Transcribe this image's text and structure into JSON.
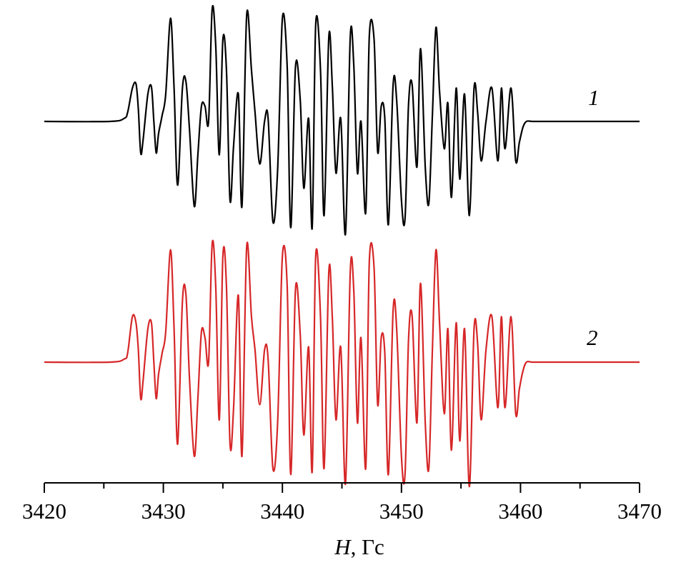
{
  "chart_data": {
    "type": "line",
    "xlabel_italic": "H",
    "xlabel_rest": ", Гс",
    "xlim": [
      3420,
      3470
    ],
    "xticks_major": [
      3420,
      3430,
      3440,
      3450,
      3460,
      3470
    ],
    "xticks_minor": [
      3425,
      3435,
      3445,
      3455,
      3465
    ],
    "series": [
      {
        "name": "1",
        "color": "#000000",
        "x": [
          3420.0,
          3425.5,
          3426.7,
          3427.0,
          3427.4,
          3427.7,
          3427.9,
          3428.1,
          3428.3,
          3428.7,
          3429.0,
          3429.2,
          3429.4,
          3429.6,
          3429.9,
          3430.2,
          3430.6,
          3430.9,
          3431.2,
          3431.6,
          3431.9,
          3432.2,
          3432.6,
          3432.9,
          3433.2,
          3433.5,
          3433.8,
          3434.1,
          3434.4,
          3434.7,
          3435.0,
          3435.3,
          3435.6,
          3435.9,
          3436.3,
          3436.6,
          3437.0,
          3437.4,
          3437.7,
          3438.1,
          3438.5,
          3438.8,
          3439.2,
          3439.6,
          3440.0,
          3440.4,
          3440.7,
          3441.1,
          3441.5,
          3441.8,
          3442.2,
          3442.5,
          3442.8,
          3443.2,
          3443.5,
          3443.9,
          3444.2,
          3444.5,
          3444.9,
          3445.3,
          3445.7,
          3446.0,
          3446.3,
          3446.6,
          3447.0,
          3447.3,
          3447.7,
          3448.0,
          3448.3,
          3448.6,
          3448.9,
          3449.3,
          3449.6,
          3450.0,
          3450.3,
          3450.6,
          3450.9,
          3451.3,
          3451.6,
          3452.0,
          3452.3,
          3452.6,
          3452.9,
          3453.2,
          3453.6,
          3453.9,
          3454.2,
          3454.6,
          3454.9,
          3455.3,
          3455.7,
          3456.1,
          3456.4,
          3456.7,
          3457.1,
          3457.6,
          3458.1,
          3458.4,
          3458.7,
          3459.2,
          3459.6,
          3459.9,
          3460.2,
          3460.5,
          3461.0,
          3462.0,
          3470.0
        ],
        "y": [
          0.0,
          0.0,
          0.05,
          0.15,
          0.55,
          0.62,
          0.2,
          -0.52,
          -0.3,
          0.45,
          0.57,
          0.0,
          -0.52,
          -0.2,
          0.1,
          0.45,
          1.7,
          0.55,
          -1.05,
          0.55,
          0.65,
          -0.15,
          -1.4,
          -0.55,
          0.25,
          0.25,
          0.0,
          1.85,
          1.25,
          -0.55,
          1.35,
          0.85,
          -1.3,
          -0.4,
          0.45,
          -1.4,
          1.75,
          0.85,
          0.15,
          -0.7,
          0.0,
          0.05,
          -1.65,
          -0.8,
          1.7,
          0.9,
          -1.75,
          0.9,
          0.35,
          -1.1,
          0.05,
          -1.75,
          1.6,
          0.85,
          -1.55,
          1.4,
          0.55,
          -0.85,
          0.05,
          -1.85,
          1.4,
          0.9,
          -0.85,
          0.0,
          -1.5,
          1.4,
          1.35,
          -0.5,
          0.25,
          0.05,
          -1.7,
          0.6,
          0.35,
          -1.3,
          -1.6,
          0.3,
          0.6,
          -0.75,
          1.2,
          -0.75,
          -1.35,
          0.1,
          1.55,
          0.5,
          -0.45,
          0.3,
          -1.25,
          0.55,
          -0.95,
          0.45,
          -1.55,
          0.55,
          0.15,
          -0.65,
          0.0,
          0.55,
          -0.65,
          0.55,
          -0.45,
          0.55,
          -0.65,
          -0.35,
          -0.1,
          0.0,
          0.0,
          0.0,
          0.0
        ]
      },
      {
        "name": "2",
        "color": "#d62728",
        "x": [
          3420.0,
          3425.5,
          3426.7,
          3427.0,
          3427.4,
          3427.7,
          3427.9,
          3428.1,
          3428.3,
          3428.7,
          3429.0,
          3429.2,
          3429.4,
          3429.6,
          3429.9,
          3430.2,
          3430.6,
          3430.9,
          3431.2,
          3431.6,
          3431.9,
          3432.2,
          3432.6,
          3432.9,
          3433.2,
          3433.5,
          3433.8,
          3434.1,
          3434.4,
          3434.7,
          3435.0,
          3435.3,
          3435.6,
          3435.9,
          3436.3,
          3436.6,
          3437.0,
          3437.4,
          3437.7,
          3438.1,
          3438.5,
          3438.8,
          3439.2,
          3439.6,
          3440.0,
          3440.4,
          3440.7,
          3441.1,
          3441.5,
          3441.8,
          3442.2,
          3442.5,
          3442.8,
          3443.2,
          3443.5,
          3443.9,
          3444.2,
          3444.5,
          3444.9,
          3445.3,
          3445.7,
          3446.0,
          3446.3,
          3446.6,
          3447.0,
          3447.3,
          3447.7,
          3448.0,
          3448.3,
          3448.6,
          3448.9,
          3449.3,
          3449.6,
          3450.0,
          3450.3,
          3450.6,
          3450.9,
          3451.3,
          3451.6,
          3452.0,
          3452.3,
          3452.6,
          3452.9,
          3453.2,
          3453.6,
          3453.9,
          3454.2,
          3454.6,
          3454.9,
          3455.3,
          3455.7,
          3456.1,
          3456.4,
          3456.7,
          3457.1,
          3457.6,
          3458.1,
          3458.4,
          3458.7,
          3459.2,
          3459.6,
          3459.9,
          3460.2,
          3460.5,
          3461.0,
          3462.0,
          3470.0
        ],
        "y": [
          0.0,
          0.0,
          0.05,
          0.15,
          0.75,
          0.65,
          0.2,
          -0.6,
          -0.3,
          0.55,
          0.65,
          0.0,
          -0.6,
          -0.2,
          0.15,
          0.5,
          1.85,
          0.55,
          -1.35,
          1.0,
          1.1,
          -0.3,
          -1.55,
          -0.6,
          0.5,
          0.4,
          0.0,
          1.95,
          1.25,
          -0.95,
          1.75,
          1.25,
          -1.35,
          -0.75,
          1.1,
          -1.55,
          1.9,
          0.75,
          0.2,
          -0.7,
          0.2,
          0.05,
          -1.75,
          -1.0,
          1.75,
          1.25,
          -1.85,
          1.2,
          0.45,
          -1.2,
          0.25,
          -1.8,
          1.75,
          0.75,
          -1.75,
          1.5,
          0.7,
          -0.95,
          0.25,
          -2.0,
          1.5,
          1.15,
          -1.0,
          0.4,
          -1.75,
          1.65,
          1.55,
          -0.7,
          0.4,
          0.15,
          -1.85,
          0.85,
          0.55,
          -1.55,
          -1.85,
          0.4,
          0.75,
          -1.0,
          1.3,
          -1.0,
          -1.75,
          0.2,
          1.85,
          0.65,
          -0.85,
          0.55,
          -1.45,
          0.65,
          -1.3,
          0.55,
          -2.05,
          0.55,
          0.3,
          -0.95,
          0.2,
          0.75,
          -0.75,
          0.75,
          -0.75,
          0.75,
          -0.85,
          -0.45,
          -0.15,
          0.0,
          0.0,
          0.0,
          0.0
        ]
      }
    ]
  }
}
